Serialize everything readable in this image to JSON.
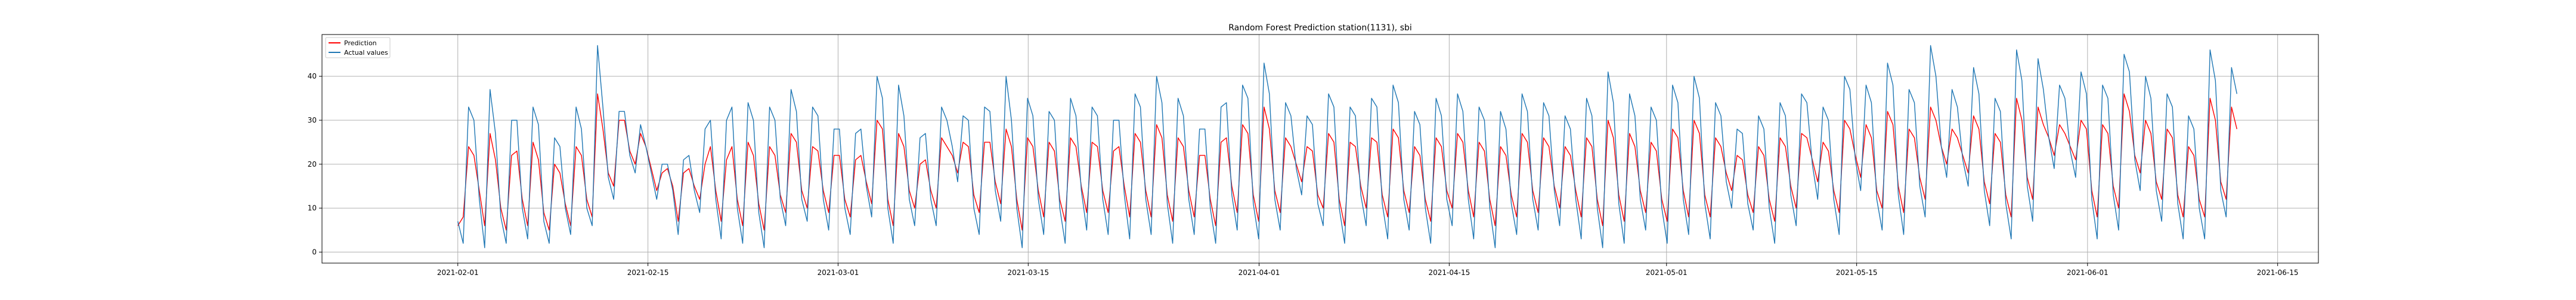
{
  "chart_data": {
    "type": "line",
    "title": "Random Forest Prediction  station(1131), sbi",
    "xlabel": "",
    "ylabel": "",
    "grid": true,
    "legend_position": "top-left",
    "x_range": [
      "2021-01-22",
      "2021-06-18"
    ],
    "ylim": [
      -2.5,
      49.5
    ],
    "x_ticks": [
      "2021-02-01",
      "2021-02-15",
      "2021-03-01",
      "2021-03-15",
      "2021-04-01",
      "2021-04-15",
      "2021-05-01",
      "2021-05-15",
      "2021-06-01",
      "2021-06-15"
    ],
    "y_ticks": [
      0,
      10,
      20,
      30,
      40
    ],
    "x_start": "2021-02-01",
    "x_end": "2021-06-12",
    "series": [
      {
        "name": "Prediction",
        "color": "#ff0000",
        "values": [
          6,
          8,
          24,
          22,
          14,
          6,
          27,
          21,
          10,
          5,
          22,
          23,
          12,
          6,
          25,
          21,
          9,
          5,
          20,
          18,
          11,
          6,
          24,
          22,
          12,
          8,
          36,
          28,
          18,
          15,
          30,
          30,
          23,
          20,
          27,
          24,
          19,
          14,
          18,
          19,
          15,
          7,
          18,
          19,
          15,
          12,
          20,
          24,
          14,
          7,
          21,
          24,
          12,
          6,
          25,
          22,
          11,
          5,
          24,
          22,
          13,
          9,
          27,
          25,
          14,
          10,
          24,
          23,
          14,
          9,
          22,
          22,
          12,
          8,
          21,
          22,
          16,
          11,
          30,
          28,
          12,
          6,
          27,
          24,
          14,
          10,
          20,
          21,
          14,
          10,
          26,
          24,
          22,
          18,
          25,
          24,
          13,
          9,
          25,
          25,
          16,
          11,
          28,
          24,
          12,
          5,
          26,
          24,
          14,
          8,
          25,
          23,
          12,
          7,
          26,
          24,
          15,
          9,
          25,
          24,
          14,
          9,
          23,
          24,
          15,
          8,
          27,
          25,
          14,
          8,
          29,
          26,
          13,
          7,
          26,
          24,
          14,
          8,
          22,
          22,
          12,
          6,
          25,
          26,
          15,
          9,
          29,
          27,
          13,
          7,
          33,
          28,
          14,
          9,
          26,
          24,
          20,
          16,
          24,
          23,
          13,
          10,
          27,
          25,
          12,
          6,
          25,
          24,
          15,
          10,
          26,
          25,
          13,
          8,
          28,
          26,
          14,
          9,
          24,
          22,
          12,
          7,
          26,
          24,
          14,
          10,
          27,
          25,
          14,
          8,
          25,
          23,
          12,
          6,
          24,
          22,
          13,
          8,
          27,
          25,
          14,
          9,
          26,
          24,
          15,
          10,
          24,
          22,
          14,
          8,
          26,
          24,
          12,
          6,
          30,
          26,
          13,
          7,
          27,
          24,
          14,
          9,
          25,
          23,
          12,
          7,
          28,
          26,
          14,
          8,
          30,
          27,
          13,
          8,
          26,
          24,
          18,
          14,
          22,
          21,
          13,
          9,
          24,
          22,
          12,
          7,
          26,
          24,
          15,
          10,
          27,
          26,
          21,
          16,
          25,
          23,
          14,
          9,
          30,
          28,
          22,
          17,
          29,
          26,
          14,
          10,
          32,
          29,
          15,
          9,
          28,
          26,
          17,
          12,
          33,
          30,
          24,
          20,
          28,
          26,
          22,
          18,
          31,
          28,
          16,
          11,
          27,
          25,
          13,
          8,
          35,
          30,
          17,
          12,
          33,
          29,
          26,
          22,
          29,
          27,
          24,
          21,
          30,
          28,
          14,
          8,
          29,
          27,
          15,
          10,
          36,
          32,
          22,
          18,
          30,
          27,
          16,
          12,
          28,
          26,
          13,
          8,
          24,
          22,
          12,
          8,
          35,
          30,
          16,
          12,
          33,
          28
        ]
      },
      {
        "name": "Actual values",
        "color": "#1f77b4",
        "values": [
          7,
          2,
          33,
          30,
          12,
          1,
          37,
          27,
          8,
          2,
          30,
          30,
          10,
          3,
          33,
          29,
          7,
          2,
          26,
          24,
          10,
          4,
          33,
          28,
          10,
          6,
          47,
          33,
          17,
          12,
          32,
          32,
          22,
          18,
          29,
          24,
          18,
          12,
          20,
          20,
          14,
          4,
          21,
          22,
          14,
          9,
          28,
          30,
          12,
          3,
          30,
          33,
          10,
          2,
          34,
          30,
          9,
          1,
          33,
          30,
          12,
          6,
          37,
          32,
          12,
          7,
          33,
          31,
          12,
          5,
          28,
          28,
          10,
          4,
          27,
          28,
          15,
          8,
          40,
          35,
          10,
          2,
          38,
          31,
          12,
          6,
          26,
          27,
          12,
          6,
          33,
          30,
          24,
          16,
          31,
          30,
          10,
          4,
          33,
          32,
          14,
          7,
          40,
          30,
          10,
          1,
          35,
          31,
          12,
          4,
          32,
          30,
          10,
          2,
          35,
          31,
          14,
          5,
          33,
          31,
          12,
          4,
          30,
          30,
          13,
          3,
          36,
          33,
          12,
          4,
          40,
          34,
          11,
          2,
          35,
          31,
          12,
          4,
          28,
          28,
          10,
          2,
          33,
          34,
          13,
          5,
          38,
          35,
          11,
          3,
          43,
          36,
          12,
          5,
          34,
          31,
          19,
          13,
          31,
          29,
          11,
          6,
          36,
          33,
          10,
          2,
          33,
          31,
          13,
          6,
          35,
          33,
          11,
          3,
          38,
          34,
          12,
          5,
          32,
          29,
          10,
          2,
          35,
          31,
          12,
          6,
          36,
          32,
          12,
          3,
          33,
          30,
          10,
          1,
          32,
          28,
          11,
          4,
          36,
          32,
          12,
          5,
          34,
          31,
          14,
          6,
          31,
          28,
          12,
          3,
          35,
          31,
          10,
          1,
          41,
          34,
          11,
          2,
          36,
          31,
          12,
          5,
          33,
          30,
          10,
          2,
          38,
          34,
          12,
          4,
          40,
          35,
          11,
          3,
          34,
          31,
          16,
          10,
          28,
          27,
          11,
          5,
          31,
          28,
          10,
          2,
          34,
          31,
          13,
          6,
          36,
          34,
          20,
          12,
          33,
          30,
          12,
          4,
          40,
          37,
          21,
          14,
          38,
          34,
          12,
          5,
          43,
          38,
          13,
          4,
          37,
          34,
          15,
          8,
          47,
          40,
          24,
          17,
          37,
          33,
          21,
          15,
          42,
          36,
          14,
          6,
          35,
          32,
          11,
          3,
          46,
          39,
          15,
          7,
          44,
          37,
          26,
          19,
          38,
          35,
          23,
          17,
          41,
          36,
          12,
          3,
          38,
          35,
          13,
          5,
          45,
          41,
          21,
          14,
          40,
          35,
          14,
          7,
          36,
          33,
          11,
          3,
          31,
          28,
          10,
          3,
          46,
          39,
          14,
          8,
          42,
          36
        ]
      }
    ]
  }
}
